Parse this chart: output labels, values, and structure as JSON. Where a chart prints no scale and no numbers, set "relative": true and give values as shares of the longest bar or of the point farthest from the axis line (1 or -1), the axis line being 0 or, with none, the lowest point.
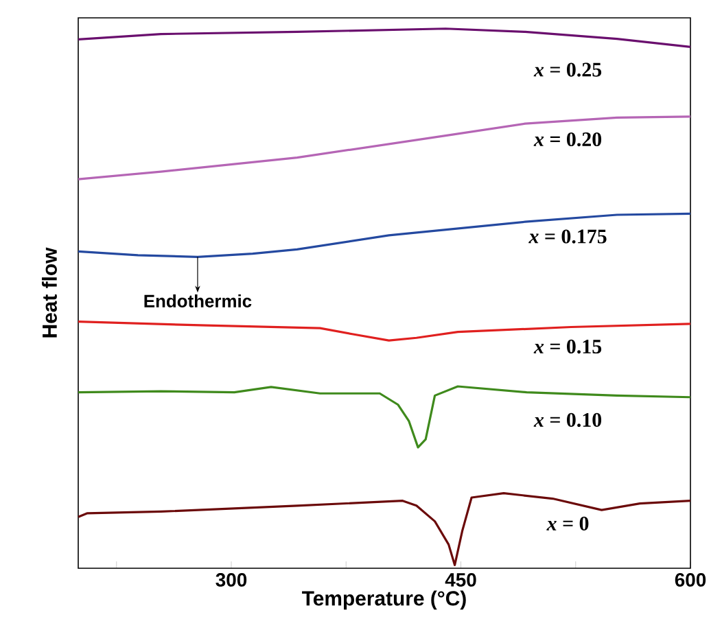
{
  "chart_data": {
    "type": "line",
    "relative": true,
    "xlabel": "Temperature (°C)",
    "ylabel": "Heat flow",
    "xlim": [
      200,
      600
    ],
    "xticks": [
      {
        "value": 225,
        "label": null
      },
      300,
      {
        "value": 375,
        "label": null
      },
      450,
      {
        "value": 525,
        "label": null
      },
      600
    ],
    "legend": false,
    "annotations": [
      {
        "text": "Endothermic",
        "x": 278,
        "y": 0.577
      }
    ],
    "series": [
      {
        "name": "*x* = 0.25",
        "color": "#6a0f6e",
        "x": [
          200,
          254,
          343,
          440,
          492,
          552,
          600
        ],
        "values": [
          0.98,
          0.99,
          0.994,
          1.0,
          0.994,
          0.981,
          0.966
        ]
      },
      {
        "name": "*x* = 0.20",
        "color": "#b565b5",
        "x": [
          200,
          254,
          343,
          443,
          492,
          552,
          600
        ],
        "values": [
          0.721,
          0.735,
          0.761,
          0.803,
          0.824,
          0.835,
          0.837
        ]
      },
      {
        "name": "*x* = 0.175",
        "color": "#2449a0",
        "x": [
          200,
          239,
          278,
          314,
          343,
          403,
          492,
          552,
          600
        ],
        "values": [
          0.587,
          0.58,
          0.577,
          0.583,
          0.591,
          0.617,
          0.642,
          0.655,
          0.657
        ]
      },
      {
        "name": "*x* = 0.15",
        "color": "#e0201f",
        "x": [
          200,
          284,
          358,
          379,
          403,
          421,
          448,
          522,
          600
        ],
        "values": [
          0.457,
          0.45,
          0.445,
          0.434,
          0.422,
          0.427,
          0.438,
          0.447,
          0.453
        ]
      },
      {
        "name": "*x* = 0.10",
        "color": "#3f8a1c",
        "x": [
          200,
          254,
          302,
          326,
          358,
          397,
          409,
          416,
          422,
          427,
          433,
          448,
          493,
          552,
          600
        ],
        "values": [
          0.326,
          0.328,
          0.326,
          0.336,
          0.324,
          0.324,
          0.303,
          0.273,
          0.224,
          0.239,
          0.32,
          0.337,
          0.326,
          0.32,
          0.317
        ]
      },
      {
        "name": "*x* = 0",
        "color": "#6b0a0a",
        "x": [
          200,
          206,
          254,
          343,
          412,
          421,
          433,
          442,
          446,
          451,
          457,
          478,
          510,
          542,
          567,
          600
        ],
        "values": [
          0.095,
          0.102,
          0.105,
          0.116,
          0.125,
          0.116,
          0.087,
          0.044,
          0.006,
          0.07,
          0.131,
          0.139,
          0.129,
          0.108,
          0.12,
          0.125
        ]
      }
    ]
  }
}
